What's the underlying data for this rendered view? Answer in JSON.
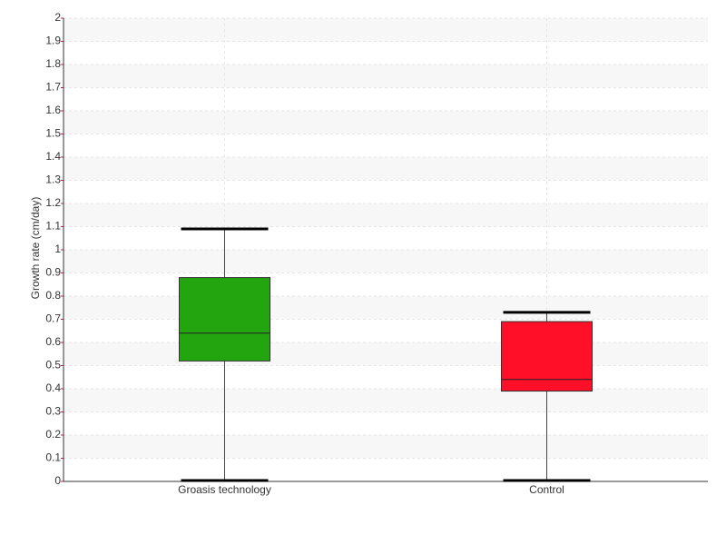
{
  "chart_data": {
    "type": "box",
    "y_label": "Growth rate (cm/day)",
    "categories": [
      "Groasis technology",
      "Control"
    ],
    "boxes": [
      {
        "min": 0,
        "q1": 0.52,
        "median": 0.64,
        "q3": 0.88,
        "max": 1.09
      },
      {
        "min": 0,
        "q1": 0.39,
        "median": 0.44,
        "q3": 0.69,
        "max": 0.73
      }
    ],
    "colors": [
      "#22a50e",
      "#ff1028"
    ],
    "ylim": [
      0,
      2
    ],
    "yticks": [
      0,
      0.1,
      0.2,
      0.3,
      0.4,
      0.5,
      0.6,
      0.7,
      0.8,
      0.9,
      1,
      1.1,
      1.2,
      1.3,
      1.4,
      1.5,
      1.6,
      1.7,
      1.8,
      1.9,
      2
    ],
    "grid": true
  }
}
